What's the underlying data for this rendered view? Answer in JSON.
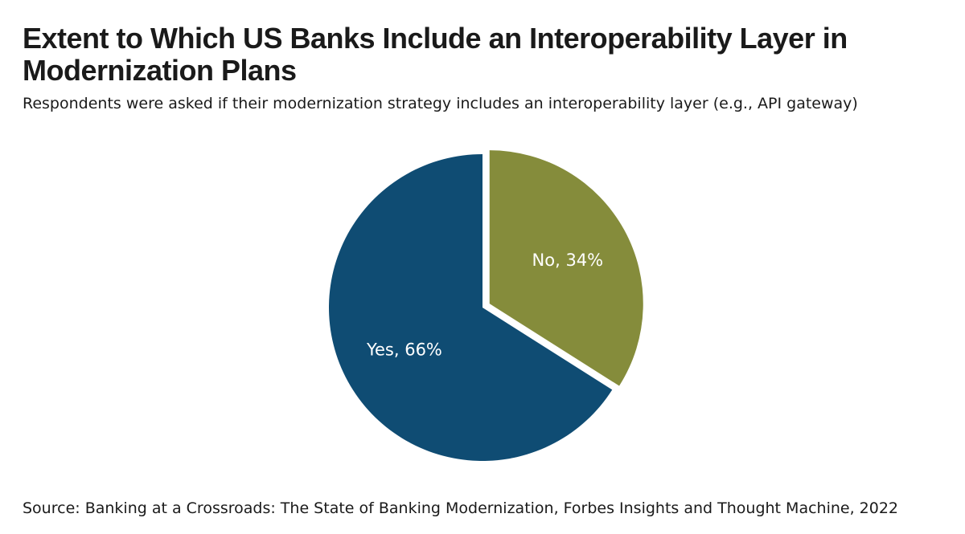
{
  "chart_data": {
    "type": "pie",
    "title": "Extent to Which US Banks Include an Interoperability Layer in Modernization Plans",
    "subtitle": "Respondents were asked if their modernization strategy includes an interoperability layer (e.g., API gateway)",
    "source": "Source: Banking at a Crossroads: The State of Banking Modernization, Forbes Insights and Thought Machine, 2022",
    "slices": [
      {
        "label": "No",
        "value": 34,
        "display": "No, 34%",
        "color": "#858c3b"
      },
      {
        "label": "Yes",
        "value": 66,
        "display": "Yes, 66%",
        "color": "#0f4c73"
      }
    ],
    "exploded_slice": "No",
    "legend": "none"
  }
}
